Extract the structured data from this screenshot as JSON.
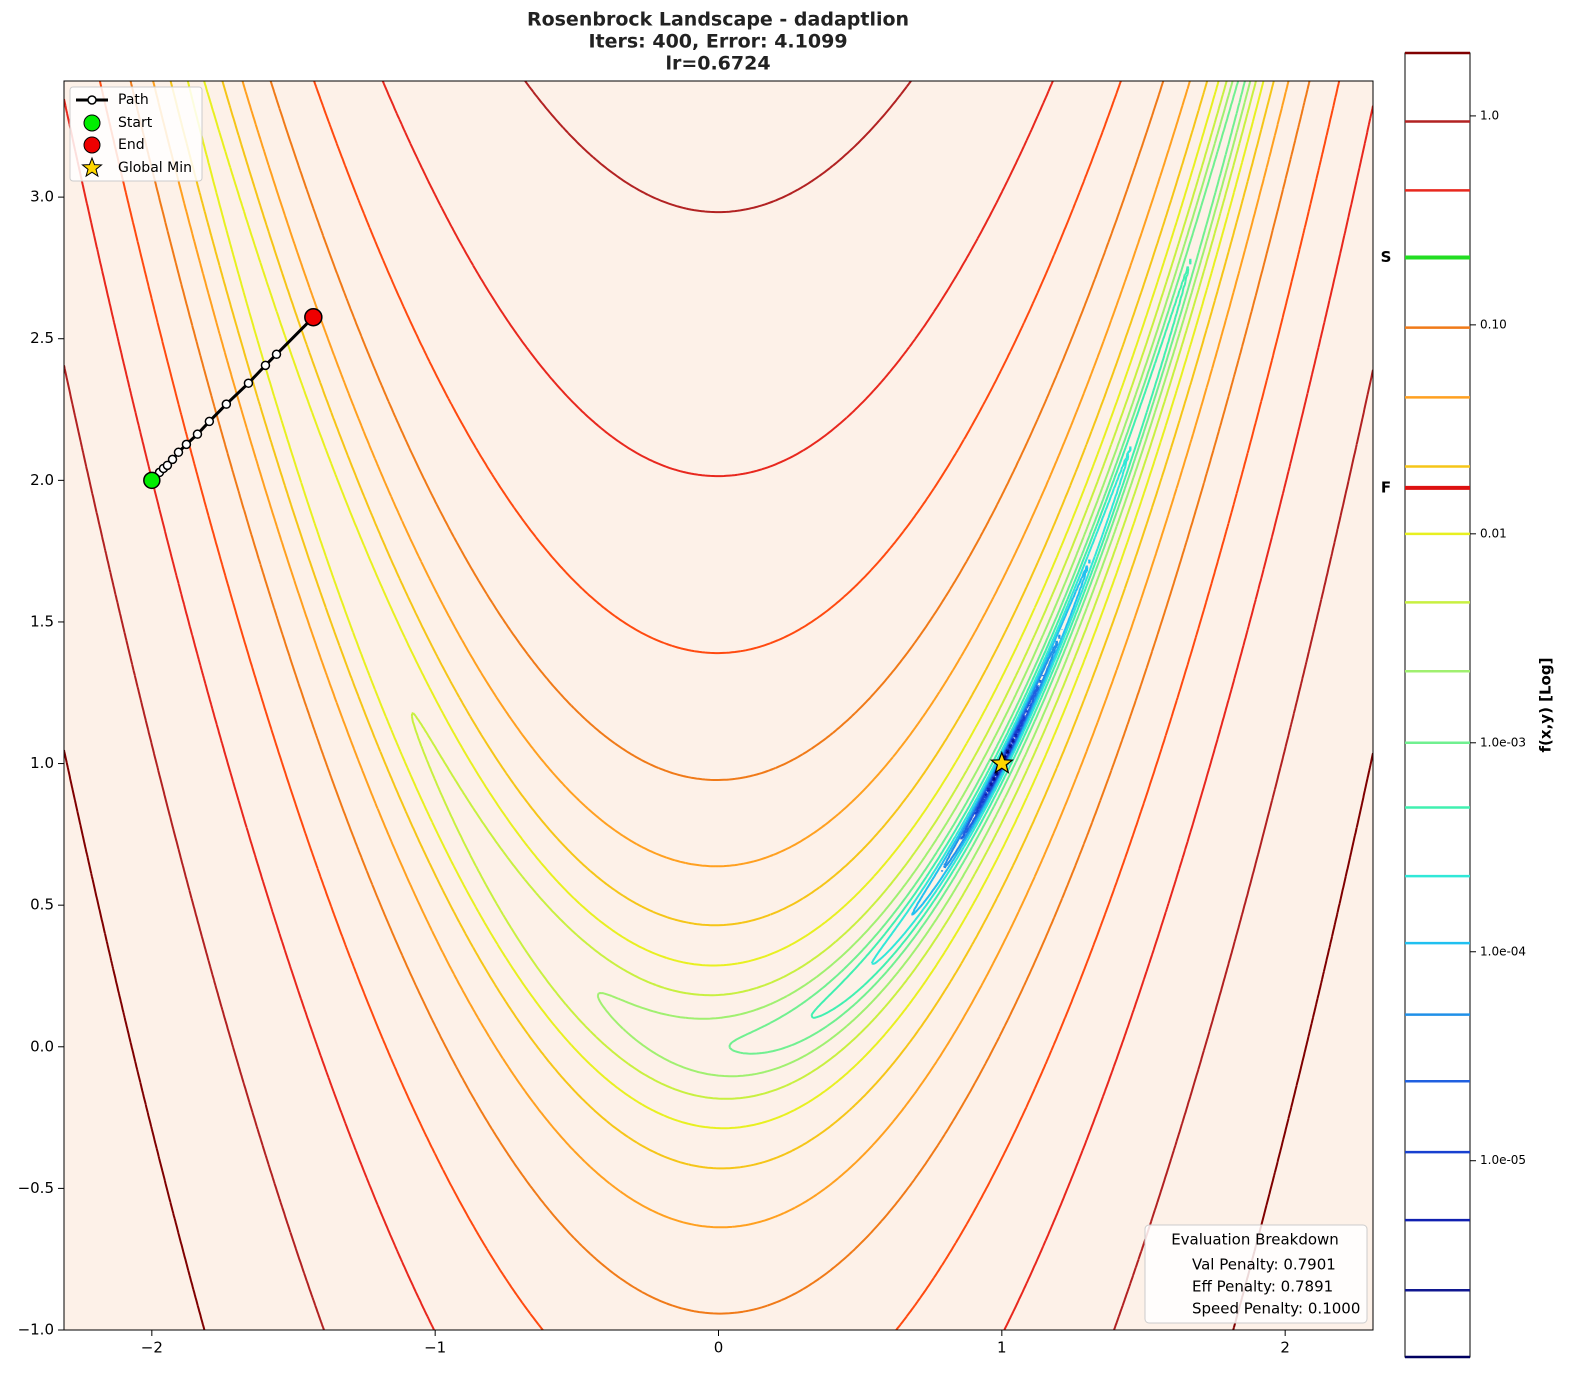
{
  "chart_data": {
    "type": "contour",
    "title": [
      "Rosenbrock Landscape - dadaptlion",
      "Iters: 400, Error: 4.1099",
      "lr=0.6724"
    ],
    "xlim": [
      -2.31,
      2.31
    ],
    "ylim": [
      -1.0,
      3.41
    ],
    "xticks": [
      {
        "value": -2,
        "label": "−2"
      },
      {
        "value": -1,
        "label": "−1"
      },
      0,
      1,
      2
    ],
    "yticks": [
      {
        "value": -1.0,
        "label": "−1.0"
      },
      {
        "value": -0.5,
        "label": "−0.5"
      },
      {
        "value": 0.0,
        "label": "0.0"
      },
      {
        "value": 0.5,
        "label": "0.5"
      },
      {
        "value": 1.0,
        "label": "1.0"
      },
      {
        "value": 1.5,
        "label": "1.5"
      },
      {
        "value": 2.0,
        "label": "2.0"
      },
      {
        "value": 2.5,
        "label": "2.5"
      },
      {
        "value": 3.0,
        "label": "3.0"
      }
    ],
    "legend": "upper left",
    "path": {
      "name": "Path",
      "color": "#000000",
      "x": [
        -2.0,
        -1.973,
        -1.959,
        -1.945,
        -1.927,
        -1.906,
        -1.878,
        -1.839,
        -1.797,
        -1.737,
        -1.659,
        -1.599,
        -1.56,
        -1.43
      ],
      "y": [
        2.0,
        2.028,
        2.042,
        2.053,
        2.074,
        2.099,
        2.127,
        2.163,
        2.208,
        2.269,
        2.343,
        2.406,
        2.445,
        2.576
      ]
    },
    "start": {
      "name": "Start",
      "x": -2.0,
      "y": 2.0,
      "color": "#00ee00"
    },
    "end": {
      "name": "End",
      "x": -1.43,
      "y": 2.576,
      "color": "#ee0000"
    },
    "global_min": {
      "name": "Global Min",
      "x": 1.0,
      "y": 1.0,
      "color": "#ffd700"
    },
    "colorbar": {
      "label": "f(x,y) [Log]",
      "scale": "log",
      "lim": [
        1.15e-06,
        2.0
      ],
      "ticks": [
        {
          "value": 1.0,
          "label": "1.0"
        },
        {
          "value": 0.1,
          "label": "0.10"
        },
        0.01,
        {
          "value": 0.001,
          "label": "1.0e-03"
        },
        {
          "value": 0.0001,
          "label": "1.0e-04"
        },
        {
          "value": 1e-05,
          "label": "1.0e-05"
        }
      ],
      "levels": [
        2.0,
        0.94,
        0.44,
        0.21,
        0.097,
        0.045,
        0.021,
        0.01,
        0.0047,
        0.0022,
        0.001,
        0.00049,
        0.00023,
        0.00011,
        5e-05,
        2.4e-05,
        1.1e-05,
        5.2e-06,
        2.4e-06,
        1.15e-06
      ],
      "colors": [
        "#800000",
        "#b22222",
        "#e8281e",
        "#ff4a10",
        "#f07a18",
        "#ffa020",
        "#f5c518",
        "#e8f020",
        "#c8f040",
        "#a0f070",
        "#70f090",
        "#40f0b0",
        "#30e8d8",
        "#20c0f0",
        "#2090e8",
        "#2060e0",
        "#1840d0",
        "#1020b0",
        "#101890",
        "#000060"
      ],
      "markers": [
        {
          "label": "S",
          "value": 0.21,
          "color": "#22dd22"
        },
        {
          "label": "F",
          "value": 0.0166,
          "color": "#dd1111"
        }
      ]
    },
    "annotation": {
      "title": "Evaluation Breakdown",
      "lines": [
        "Val Penalty: 0.7901",
        "Eff Penalty: 0.7891",
        "Speed Penalty: 0.1000"
      ]
    }
  }
}
